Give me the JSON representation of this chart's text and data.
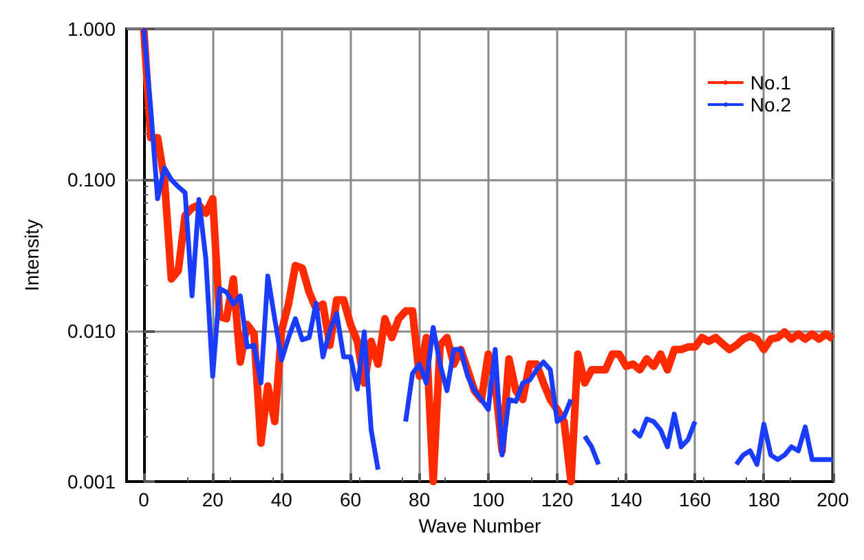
{
  "chart_data": {
    "type": "line",
    "xlabel": "Wave Number",
    "ylabel": "Intensity",
    "log": "y",
    "grid": true,
    "legend": "top right",
    "marker": "none",
    "line_style": "solid",
    "xlim": [
      -5,
      200
    ],
    "xticks": [
      0,
      20,
      40,
      60,
      80,
      100,
      120,
      140,
      160,
      180,
      200
    ],
    "ylim": [
      0.001,
      1
    ],
    "yticks": [
      {
        "value": 0.001,
        "label": "0.001"
      },
      {
        "value": 0.01,
        "label": "0.010"
      },
      {
        "value": 0.1,
        "label": "0.100"
      },
      {
        "value": 1,
        "label": "1.000"
      }
    ],
    "x": [
      0,
      2,
      4,
      6,
      8,
      10,
      12,
      14,
      16,
      18,
      20,
      22,
      24,
      26,
      28,
      30,
      32,
      34,
      36,
      38,
      40,
      42,
      44,
      46,
      48,
      50,
      52,
      54,
      56,
      58,
      60,
      62,
      64,
      66,
      68,
      70,
      72,
      74,
      76,
      78,
      80,
      82,
      84,
      86,
      88,
      90,
      92,
      94,
      96,
      98,
      100,
      102,
      104,
      106,
      108,
      110,
      112,
      114,
      116,
      118,
      120,
      122,
      124,
      126,
      128,
      130,
      132,
      134,
      136,
      138,
      140,
      142,
      144,
      146,
      148,
      150,
      152,
      154,
      156,
      158,
      160,
      162,
      164,
      166,
      168,
      170,
      172,
      174,
      176,
      178,
      180,
      182,
      184,
      186,
      188,
      190,
      192,
      194,
      196,
      198,
      200
    ],
    "series": [
      {
        "name": "No.1",
        "color": "#ff2a00",
        "values": [
          1.0,
          0.19,
          0.19,
          0.1,
          0.022,
          0.025,
          0.058,
          0.065,
          0.068,
          0.06,
          0.075,
          0.0124,
          0.012,
          0.022,
          0.0062,
          0.011,
          0.0095,
          0.0018,
          0.0043,
          0.0025,
          0.01,
          0.015,
          0.027,
          0.026,
          0.018,
          0.014,
          0.015,
          0.008,
          0.016,
          0.016,
          0.011,
          0.0085,
          0.0045,
          0.0085,
          0.006,
          0.012,
          0.009,
          0.012,
          0.0135,
          0.0135,
          0.005,
          0.009,
          0.001,
          0.008,
          0.009,
          0.006,
          0.0075,
          0.0055,
          0.004,
          0.0035,
          0.007,
          0.0045,
          0.0016,
          0.0065,
          0.004,
          0.0035,
          0.006,
          0.006,
          0.0045,
          0.0035,
          0.003,
          0.0025,
          0.001,
          0.007,
          0.0045,
          0.0055,
          0.0055,
          0.0055,
          0.007,
          0.007,
          0.0058,
          0.006,
          0.0055,
          0.0065,
          0.0058,
          0.007,
          0.0055,
          0.0075,
          0.0075,
          0.0078,
          0.0078,
          0.009,
          0.0085,
          0.009,
          0.0082,
          0.0075,
          0.008,
          0.0088,
          0.0092,
          0.0088,
          0.0075,
          0.0088,
          0.009,
          0.0098,
          0.0088,
          0.0095,
          0.0088,
          0.0095,
          0.0088,
          0.0095,
          0.0088
        ]
      },
      {
        "name": "No.2",
        "color": "#1a3cff",
        "values": [
          1.0,
          0.3,
          0.075,
          0.12,
          0.1,
          0.09,
          0.082,
          0.017,
          0.074,
          0.03,
          0.005,
          0.019,
          0.018,
          0.015,
          0.017,
          0.0078,
          0.008,
          0.0045,
          0.023,
          0.012,
          0.0064,
          0.009,
          0.012,
          0.0087,
          0.009,
          0.0152,
          0.0067,
          0.01,
          0.013,
          0.0067,
          0.0067,
          0.0041,
          0.0098,
          0.0022,
          0.0012,
          null,
          null,
          null,
          0.0025,
          0.0052,
          0.006,
          0.0045,
          0.0105,
          0.006,
          0.004,
          0.0075,
          0.0075,
          0.005,
          0.004,
          0.0035,
          0.003,
          0.0075,
          0.0015,
          0.0035,
          0.0034,
          0.0045,
          0.0047,
          0.0055,
          0.0062,
          0.0055,
          0.0025,
          0.0027,
          0.0035,
          null,
          0.002,
          0.0017,
          0.0013,
          null,
          null,
          null,
          null,
          0.0022,
          0.002,
          0.0026,
          0.0025,
          0.0022,
          0.0017,
          0.0028,
          0.0017,
          0.0019,
          0.0025,
          null,
          null,
          null,
          null,
          null,
          0.0013,
          0.0015,
          0.0016,
          0.0013,
          0.0024,
          0.0015,
          0.0014,
          0.0015,
          0.0017,
          0.0016,
          0.0023,
          0.0014,
          0.0014,
          0.0014,
          0.0014
        ]
      }
    ]
  }
}
